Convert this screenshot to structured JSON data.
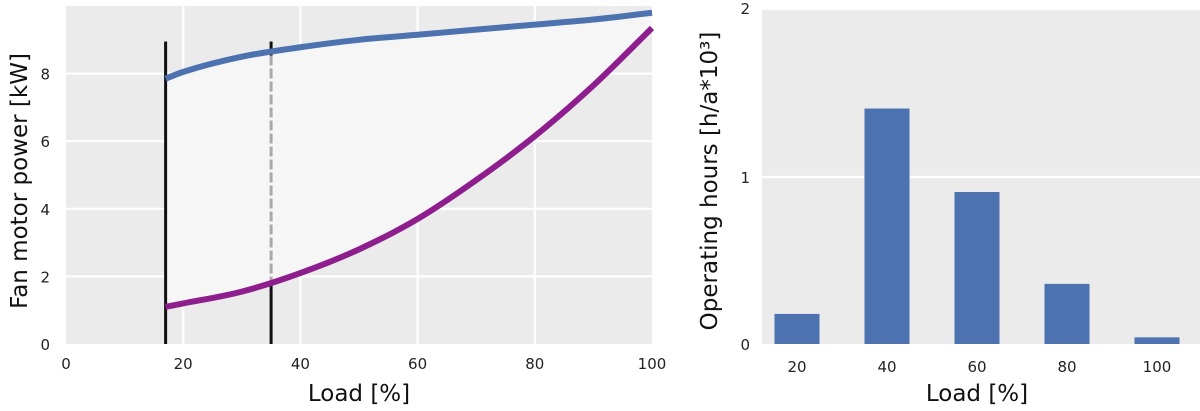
{
  "colors": {
    "background": "#ebebeb",
    "grid": "#ffffff",
    "blue": "#4c72b0",
    "purple": "#8e1e8e",
    "band": "#f6f6f6",
    "black_line": "#111111",
    "gray_line": "#aaaaaa"
  },
  "chart_data": [
    {
      "type": "line",
      "xlabel": "Load [%]",
      "ylabel": "Fan motor power [kW]",
      "xlim": [
        0,
        100
      ],
      "ylim": [
        0,
        10
      ],
      "xticks": [
        "0",
        "20",
        "40",
        "60",
        "80",
        "100"
      ],
      "yticks": [
        "0",
        "2",
        "4",
        "6",
        "8"
      ],
      "grid": true,
      "series": [
        {
          "color": "#4c72b0",
          "x": [
            17,
            20,
            30,
            40,
            50,
            60,
            70,
            80,
            90,
            100
          ],
          "y": [
            7.85,
            8.05,
            8.5,
            8.78,
            9.0,
            9.15,
            9.3,
            9.45,
            9.6,
            9.8
          ]
        },
        {
          "color": "#8e1e8e",
          "x": [
            17,
            20,
            30,
            40,
            50,
            60,
            70,
            80,
            90,
            100
          ],
          "y": [
            1.1,
            1.2,
            1.55,
            2.1,
            2.8,
            3.7,
            4.85,
            6.15,
            7.65,
            9.35
          ]
        }
      ],
      "markers": [
        {
          "x": 17,
          "y_range": [
            0,
            8.95
          ],
          "style": "solid",
          "color": "#111111"
        },
        {
          "x": 35,
          "y_range": [
            0,
            8.95
          ],
          "style": "solid-below-dashed-above",
          "color": "#111111",
          "upper_color": "#aaaaaa",
          "split_y": 1.8
        }
      ]
    },
    {
      "type": "bar",
      "xlabel": "Load [%]",
      "ylabel": "Operating hours [h/a*10³]",
      "categories": [
        "20",
        "40",
        "60",
        "80",
        "100"
      ],
      "values": [
        0.18,
        1.41,
        0.91,
        0.36,
        0.04
      ],
      "ylim": [
        0,
        2
      ],
      "yticks": [
        "0",
        "1",
        "2"
      ],
      "grid": true,
      "color": "#4c72b0"
    }
  ]
}
